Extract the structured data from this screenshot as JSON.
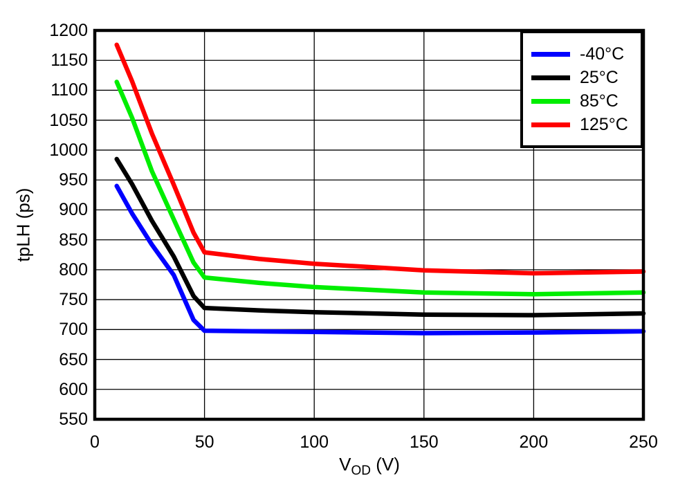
{
  "chart_data": {
    "type": "line",
    "title": "",
    "xlabel": {
      "main": "V",
      "sub": "OD",
      "unit": " (V)"
    },
    "ylabel": "tpLH (ps)",
    "xlim": [
      0,
      250
    ],
    "ylim": [
      550,
      1200
    ],
    "x_ticks": [
      0,
      50,
      100,
      150,
      200,
      250
    ],
    "y_ticks": [
      550,
      600,
      650,
      700,
      750,
      800,
      850,
      900,
      950,
      1000,
      1050,
      1100,
      1150,
      1200
    ],
    "grid": true,
    "legend_position": "top-right",
    "x": [
      10,
      17,
      26,
      36,
      45,
      50,
      75,
      100,
      150,
      200,
      250
    ],
    "series": [
      {
        "name": "-40°C",
        "color": "#0000ff",
        "values": [
          940,
          894,
          842,
          791,
          716,
          698,
          697,
          696,
          694,
          695,
          697
        ]
      },
      {
        "name": "25°C",
        "color": "#000000",
        "values": [
          985,
          943,
          882,
          822,
          756,
          736,
          732,
          729,
          725,
          724,
          727
        ]
      },
      {
        "name": "85°C",
        "color": "#00ee00",
        "values": [
          1114,
          1054,
          965,
          884,
          812,
          787,
          778,
          771,
          762,
          759,
          762
        ]
      },
      {
        "name": "125°C",
        "color": "#ff0000",
        "values": [
          1176,
          1115,
          1028,
          942,
          862,
          829,
          818,
          810,
          799,
          794,
          797
        ]
      }
    ],
    "axis_color": "#000000",
    "grid_color": "#000000",
    "background_color": "#ffffff"
  }
}
